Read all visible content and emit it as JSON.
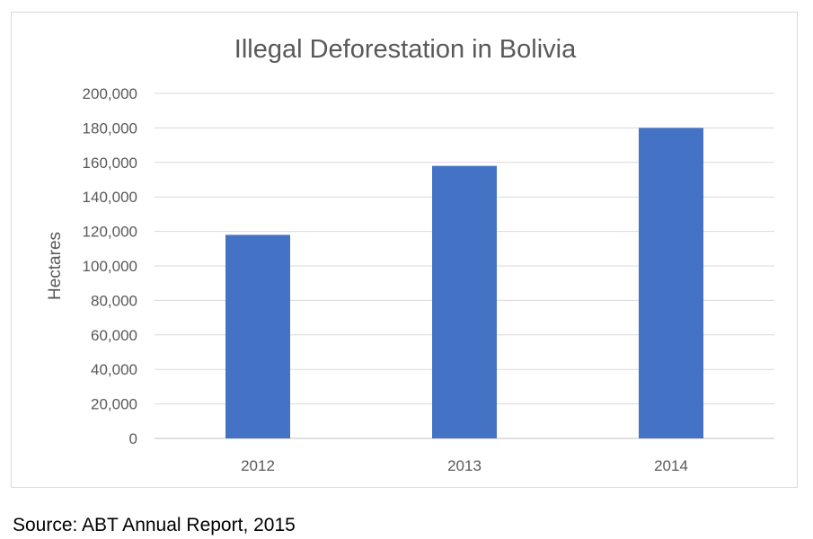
{
  "chart_data": {
    "type": "bar",
    "title": "Illegal Deforestation in Bolivia",
    "xlabel": "",
    "ylabel": "Hectares",
    "categories": [
      "2012",
      "2013",
      "2014"
    ],
    "values": [
      118000,
      158000,
      180000
    ],
    "ylim": [
      0,
      200000
    ],
    "yticks": [
      0,
      20000,
      40000,
      60000,
      80000,
      100000,
      120000,
      140000,
      160000,
      180000,
      200000
    ],
    "ytick_labels": [
      "0",
      "20,000",
      "40,000",
      "60,000",
      "80,000",
      "100,000",
      "120,000",
      "140,000",
      "160,000",
      "180,000",
      "200,000"
    ],
    "grid": true,
    "legend": "none",
    "bar_color": "#4472c4"
  },
  "source": "Source: ABT Annual Report, 2015"
}
